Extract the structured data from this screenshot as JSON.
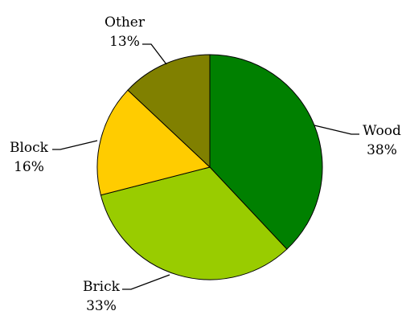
{
  "chart_data": {
    "type": "pie",
    "start": "12 o'clock",
    "direction": "clockwise",
    "slices": [
      {
        "name": "Wood",
        "value": 38,
        "label": "38%",
        "color": "#008000"
      },
      {
        "name": "Brick",
        "value": 33,
        "label": "33%",
        "color": "#99cc00"
      },
      {
        "name": "Block",
        "value": 16,
        "label": "16%",
        "color": "#ffcc00"
      },
      {
        "name": "Other",
        "value": 13,
        "label": "13%",
        "color": "#808000"
      }
    ]
  }
}
